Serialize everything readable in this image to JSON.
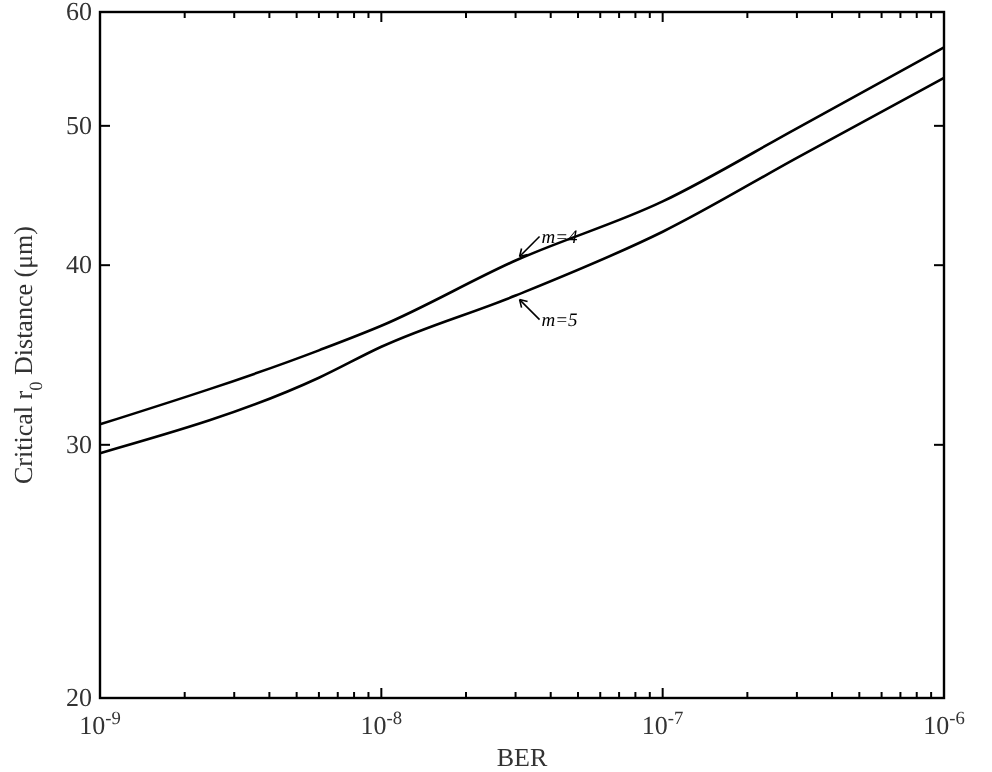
{
  "chart_data": {
    "type": "line",
    "xlabel": "BER",
    "ylabel": "Critical r$_{0}$ Distance (μm)",
    "log": "xy",
    "grid": false,
    "line_style": "solid",
    "xlim": [
      1e-09,
      1e-06
    ],
    "ylim": [
      20,
      60
    ],
    "xticks": [
      {
        "value": 1e-09,
        "label": "10$^{-9}$"
      },
      {
        "value": 2e-09,
        "label": null
      },
      {
        "value": 3e-09,
        "label": null
      },
      {
        "value": 4e-09,
        "label": null
      },
      {
        "value": 5e-09,
        "label": null
      },
      {
        "value": 6e-09,
        "label": null
      },
      {
        "value": 7e-09,
        "label": null
      },
      {
        "value": 8e-09,
        "label": null
      },
      {
        "value": 9e-09,
        "label": null
      },
      {
        "value": 1e-08,
        "label": "10$^{-8}$"
      },
      {
        "value": 2e-08,
        "label": null
      },
      {
        "value": 3e-08,
        "label": null
      },
      {
        "value": 4e-08,
        "label": null
      },
      {
        "value": 5e-08,
        "label": null
      },
      {
        "value": 6e-08,
        "label": null
      },
      {
        "value": 7e-08,
        "label": null
      },
      {
        "value": 8e-08,
        "label": null
      },
      {
        "value": 9e-08,
        "label": null
      },
      {
        "value": 1e-07,
        "label": "10$^{-7}$"
      },
      {
        "value": 2e-07,
        "label": null
      },
      {
        "value": 3e-07,
        "label": null
      },
      {
        "value": 4e-07,
        "label": null
      },
      {
        "value": 5e-07,
        "label": null
      },
      {
        "value": 6e-07,
        "label": null
      },
      {
        "value": 7e-07,
        "label": null
      },
      {
        "value": 8e-07,
        "label": null
      },
      {
        "value": 9e-07,
        "label": null
      },
      {
        "value": 1e-06,
        "label": "10$^{-6}$"
      }
    ],
    "yticks": [
      20,
      30,
      40,
      50,
      60
    ],
    "x": [
      1e-09,
      6e-09,
      1e-08,
      3e-08,
      1e-07,
      3e-07,
      1e-06
    ],
    "series": [
      {
        "color": "#000000",
        "values": [
          31.0,
          34.9,
          36.3,
          40.3,
          44.3,
          49.8,
          56.7
        ]
      },
      {
        "color": "#000000",
        "values": [
          29.6,
          33.4,
          35.1,
          38.1,
          42.2,
          47.5,
          54.0
        ]
      }
    ],
    "annotations": [
      {
        "text": "m=4",
        "x": 3e-08,
        "y": 40.3
      },
      {
        "text": "m=5",
        "x": 3e-08,
        "y": 38.1
      }
    ]
  }
}
